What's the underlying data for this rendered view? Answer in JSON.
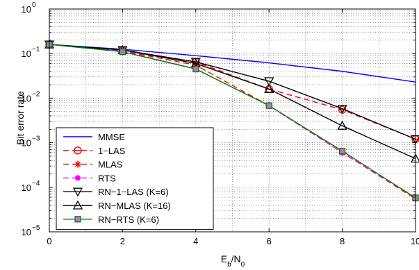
{
  "chart_data": {
    "type": "line",
    "title": "",
    "xlabel": "E_b/N_0",
    "ylabel": "Bit error rate",
    "xlim": [
      0,
      10
    ],
    "ylim": [
      1e-05,
      1
    ],
    "yscale": "log",
    "grid": true,
    "legend_position": "bottom-left",
    "x_ticks": [
      0,
      2,
      4,
      6,
      8,
      10
    ],
    "x_tick_labels": [
      "0",
      "2",
      "4",
      "6",
      "8",
      "10"
    ],
    "y_ticks": [
      1e-05,
      0.0001,
      0.001,
      0.01,
      0.1,
      1
    ],
    "y_tick_labels": [
      {
        "base": "10",
        "exp": "−5"
      },
      {
        "base": "10",
        "exp": "−4"
      },
      {
        "base": "10",
        "exp": "−3"
      },
      {
        "base": "10",
        "exp": "−2"
      },
      {
        "base": "10",
        "exp": "−1"
      },
      {
        "base": "10",
        "exp": "0"
      }
    ],
    "x": [
      0,
      2,
      4,
      6,
      8,
      10
    ],
    "series": [
      {
        "name": "MMSE",
        "color": "#0000ff",
        "dash": "solid",
        "marker": "none",
        "values": [
          0.16,
          0.125,
          0.09,
          0.062,
          0.04,
          0.023
        ]
      },
      {
        "name": "1−LAS",
        "color": "#ff0000",
        "dash": "dashed",
        "marker": "circle-plus",
        "values": [
          0.16,
          0.12,
          0.065,
          0.016,
          0.0055,
          0.0012
        ]
      },
      {
        "name": "MLAS",
        "color": "#ff0000",
        "dash": "dashed",
        "marker": "asterisk",
        "values": [
          0.16,
          0.115,
          0.055,
          0.0068,
          0.0006,
          5.5e-05
        ]
      },
      {
        "name": "RTS",
        "color": "#ff00ff",
        "dash": "dashed",
        "marker": "dot",
        "values": [
          0.16,
          0.115,
          0.045,
          0.0068,
          0.0006,
          5.8e-05
        ]
      },
      {
        "name": "RN−1−LAS (K=6)",
        "color": "#000000",
        "dash": "solid",
        "marker": "triangle-down",
        "values": [
          0.16,
          0.12,
          0.065,
          0.024,
          0.0058,
          0.0012
        ]
      },
      {
        "name": "RN−MLAS (K=16)",
        "color": "#000000",
        "dash": "solid",
        "marker": "triangle-up",
        "values": [
          0.16,
          0.12,
          0.06,
          0.016,
          0.0024,
          0.00044
        ]
      },
      {
        "name": "RN−RTS (K=6)",
        "color": "#008000",
        "dash": "solid",
        "marker": "square",
        "values": [
          0.16,
          0.11,
          0.045,
          0.0068,
          0.00065,
          5.8e-05
        ]
      }
    ]
  }
}
